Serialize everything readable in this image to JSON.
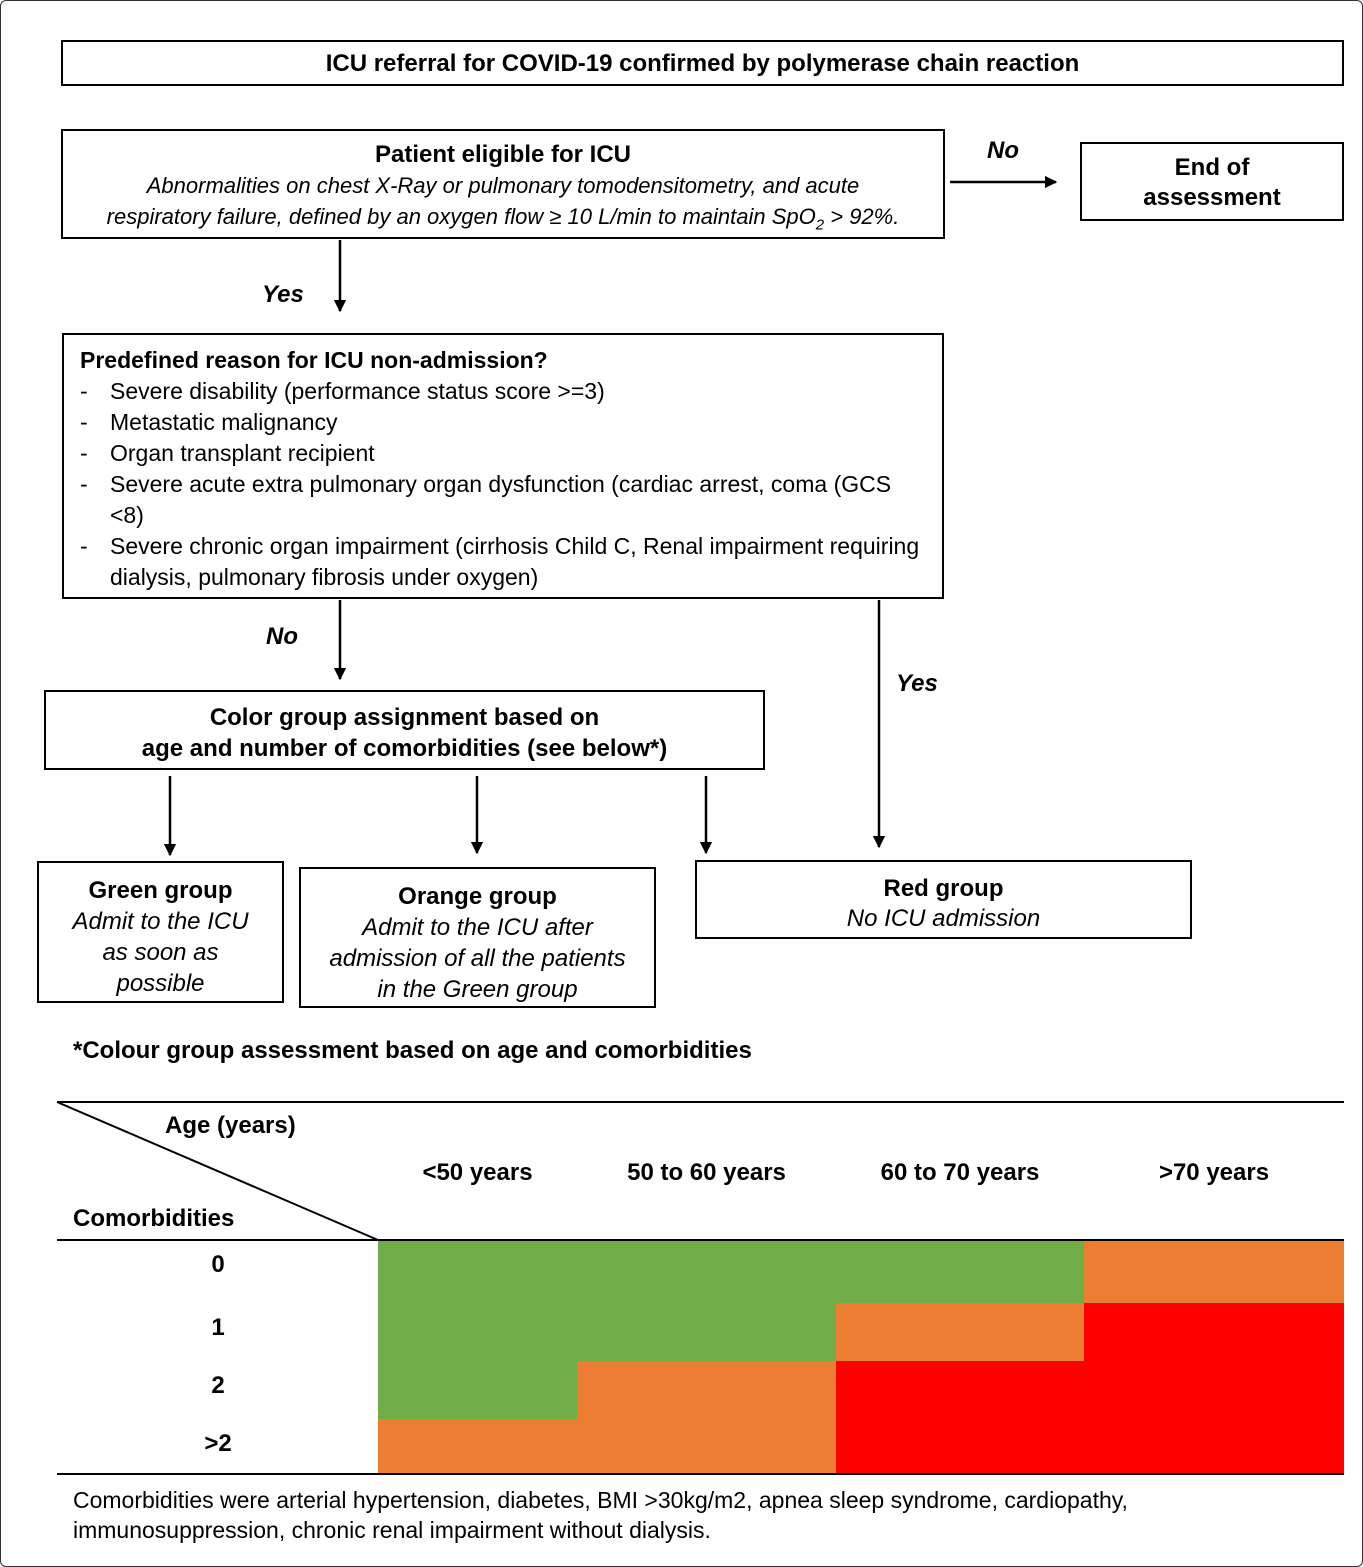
{
  "title": "ICU referral for COVID-19 confirmed by polymerase chain reaction",
  "eligibility": {
    "title": "Patient eligible for ICU",
    "description_line1": "Abnormalities on chest X-Ray or pulmonary tomodensitometry, and acute",
    "description_line2_prefix": "respiratory failure, defined by an oxygen flow ≥ 10 L/min to maintain SpO",
    "description_subscript": "2",
    "description_line2_suffix": " > 92%."
  },
  "end_box": {
    "line1": "End of",
    "line2": "assessment"
  },
  "edge_labels": {
    "eligible_no": "No",
    "eligible_yes": "Yes",
    "reason_no": "No",
    "reason_yes": "Yes"
  },
  "non_admission": {
    "title": "Predefined reason for ICU non-admission?",
    "criteria": [
      "Severe disability (performance status score >=3)",
      "Metastatic malignancy",
      "Organ transplant recipient",
      "Severe acute extra pulmonary organ dysfunction (cardiac  arrest, coma (GCS <8)",
      "Severe chronic organ impairment (cirrhosis Child C, Renal impairment requiring dialysis, pulmonary fibrosis under oxygen)"
    ]
  },
  "color_assignment": {
    "line1": "Color group assignment based on",
    "line2": "age and number of comorbidities (see below*)"
  },
  "groups": {
    "green": {
      "title": "Green group",
      "line1": "Admit to the ICU",
      "line2": "as soon as",
      "line3": "possible"
    },
    "orange": {
      "title": "Orange group",
      "line1": "Admit to the ICU after",
      "line2": "admission of all the patients",
      "line3": "in the Green group"
    },
    "red": {
      "title": "Red group",
      "line1": "No ICU admission"
    }
  },
  "assessment": {
    "heading": "*Colour group assessment based on age and comorbidities",
    "age_header": "Age (years)",
    "comorbidities_header": "Comorbidities",
    "age_groups": [
      "<50 years",
      "50 to 60 years",
      "60 to 70 years",
      ">70 years"
    ],
    "comorbidity_levels": [
      "0",
      "1",
      "2",
      ">2"
    ],
    "grid": [
      [
        "green",
        "green",
        "green",
        "orange"
      ],
      [
        "green",
        "green",
        "orange",
        "red"
      ],
      [
        "green",
        "orange",
        "red",
        "red"
      ],
      [
        "orange",
        "orange",
        "red",
        "red"
      ]
    ],
    "colors": {
      "green": "#70ad47",
      "orange": "#ed7d31",
      "red": "#ff0000"
    }
  },
  "footnote": "Comorbidities were arterial hypertension, diabetes, BMI >30kg/m2, apnea sleep syndrome, cardiopathy, immunosuppression, chronic renal impairment without dialysis."
}
